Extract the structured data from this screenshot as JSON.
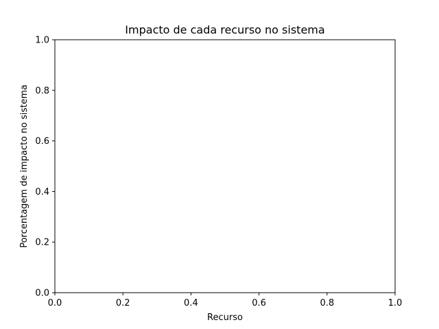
{
  "chart_data": {
    "type": "bar",
    "title": "Impacto de cada recurso no sistema",
    "xlabel": "Recurso",
    "ylabel": "Porcentagem de impacto no sistema",
    "categories": [],
    "values": [],
    "xlim": [
      0,
      1
    ],
    "ylim": [
      0,
      1
    ],
    "xticks": [
      "0.0",
      "0.2",
      "0.4",
      "0.6",
      "0.8",
      "1.0"
    ],
    "yticks": [
      "0.0",
      "0.2",
      "0.4",
      "0.6",
      "0.8",
      "1.0"
    ],
    "grid": false,
    "legend": "none"
  }
}
